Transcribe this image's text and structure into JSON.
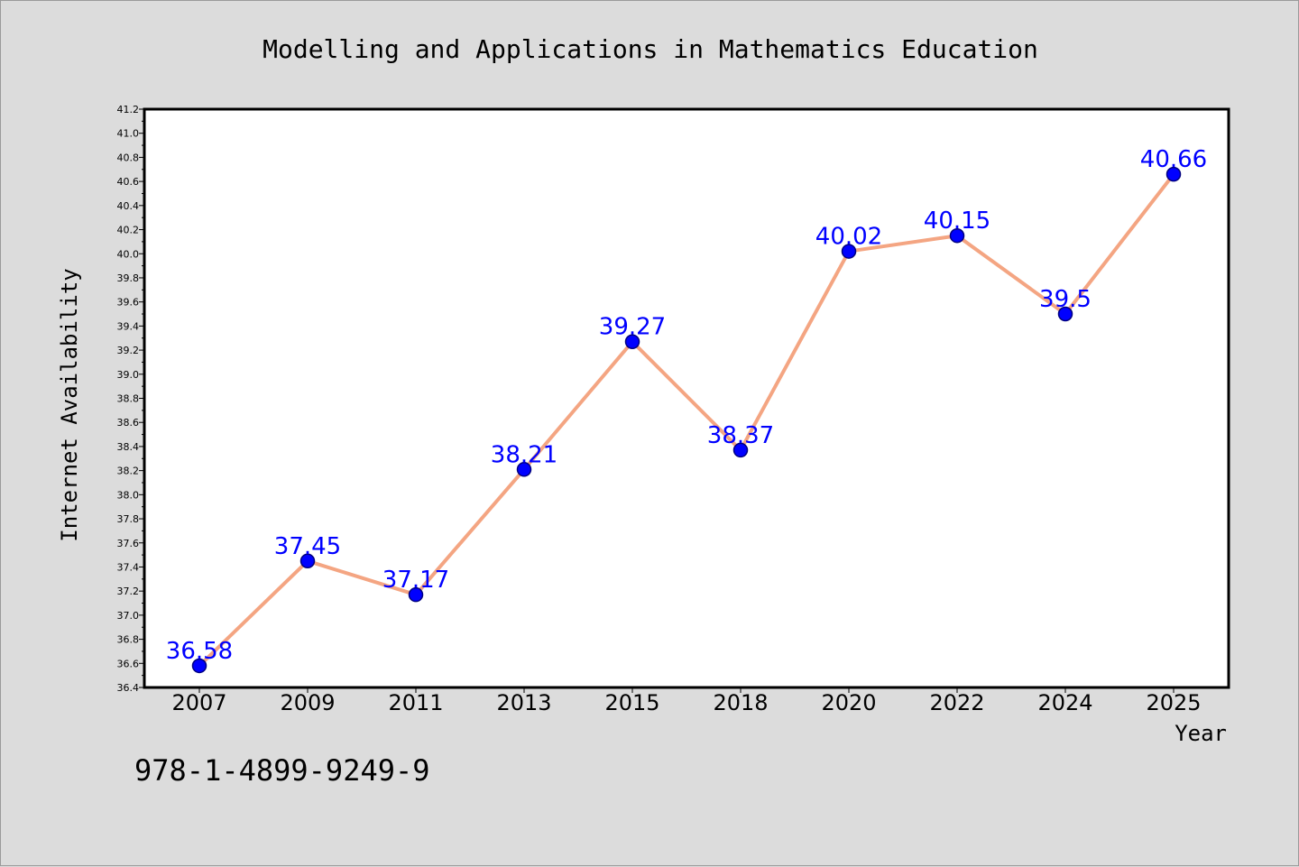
{
  "chart_data": {
    "type": "line",
    "title": "Modelling and Applications in Mathematics Education",
    "xlabel": "Year",
    "ylabel": "Internet Availability",
    "categories": [
      "2007",
      "2009",
      "2011",
      "2013",
      "2015",
      "2018",
      "2020",
      "2022",
      "2024",
      "2025"
    ],
    "series": [
      {
        "values": [
          36.58,
          37.45,
          37.17,
          38.21,
          39.27,
          38.37,
          40.02,
          40.15,
          39.5,
          40.66
        ],
        "labels": [
          "36.58",
          "37.45",
          "37.17",
          "38.21",
          "39.27",
          "38.37",
          "40.02",
          "40.15",
          "39.5",
          "40.66"
        ]
      }
    ],
    "ylim": [
      36.4,
      41.2
    ],
    "ytick_step": 0.2,
    "grid": false,
    "legend": "none",
    "annotation": "978-1-4899-9249-9",
    "colors": {
      "background": "#dcdcdc",
      "plot_background": "#ffffff",
      "line": "#f4a582",
      "marker_fill": "#0000ff",
      "marker_edge": "#000080",
      "data_label": "#0000ff",
      "text": "#000000"
    }
  }
}
